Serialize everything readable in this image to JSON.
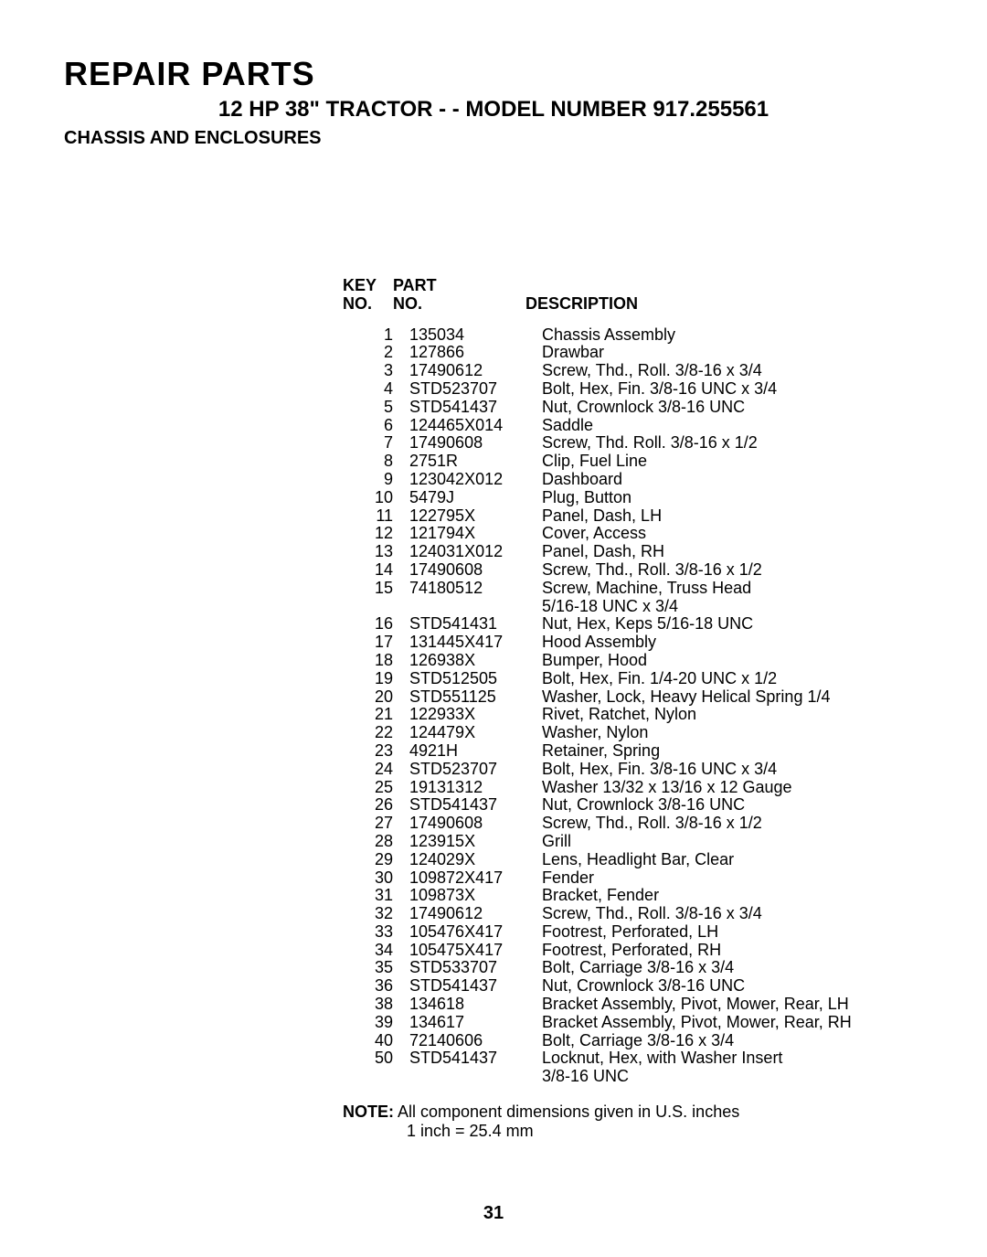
{
  "header": {
    "title": "REPAIR PARTS",
    "subtitle": "12 HP 38\" TRACTOR - - MODEL NUMBER 917.255561",
    "section": "CHASSIS AND ENCLOSURES"
  },
  "table": {
    "head": {
      "key_l1": "KEY",
      "key_l2": "NO.",
      "part_l1": "PART",
      "part_l2": "NO.",
      "desc": "DESCRIPTION"
    },
    "rows": [
      {
        "key": "1",
        "part": "135034",
        "desc": "Chassis Assembly"
      },
      {
        "key": "2",
        "part": "127866",
        "desc": "Drawbar"
      },
      {
        "key": "3",
        "part": "17490612",
        "desc": "Screw, Thd., Roll.  3/8-16 x 3/4"
      },
      {
        "key": "4",
        "part": "STD523707",
        "desc": "Bolt, Hex, Fin.  3/8-16 UNC x 3/4"
      },
      {
        "key": "5",
        "part": "STD541437",
        "desc": "Nut, Crownlock  3/8-16 UNC"
      },
      {
        "key": "6",
        "part": "124465X014",
        "desc": "Saddle"
      },
      {
        "key": "7",
        "part": "17490608",
        "desc": "Screw, Thd. Roll.  3/8-16 x 1/2"
      },
      {
        "key": "8",
        "part": "2751R",
        "desc": "Clip, Fuel Line"
      },
      {
        "key": "9",
        "part": "123042X012",
        "desc": "Dashboard"
      },
      {
        "key": "10",
        "part": "5479J",
        "desc": "Plug, Button"
      },
      {
        "key": "11",
        "part": "122795X",
        "desc": "Panel, Dash, LH"
      },
      {
        "key": "12",
        "part": "121794X",
        "desc": "Cover, Access"
      },
      {
        "key": "13",
        "part": "124031X012",
        "desc": "Panel, Dash, RH"
      },
      {
        "key": "14",
        "part": "17490608",
        "desc": "Screw, Thd., Roll.  3/8-16 x 1/2"
      },
      {
        "key": "15",
        "part": "74180512",
        "desc": "Screw, Machine, Truss Head"
      },
      {
        "key": "",
        "part": "",
        "desc": "5/16-18 UNC x 3/4"
      },
      {
        "key": "16",
        "part": "STD541431",
        "desc": "Nut, Hex, Keps  5/16-18 UNC"
      },
      {
        "key": "17",
        "part": "131445X417",
        "desc": "Hood Assembly"
      },
      {
        "key": "18",
        "part": "126938X",
        "desc": "Bumper, Hood"
      },
      {
        "key": "19",
        "part": "STD512505",
        "desc": "Bolt, Hex, Fin.  1/4-20 UNC x 1/2"
      },
      {
        "key": "20",
        "part": "STD551125",
        "desc": "Washer, Lock, Heavy Helical Spring  1/4"
      },
      {
        "key": "21",
        "part": "122933X",
        "desc": "Rivet, Ratchet, Nylon"
      },
      {
        "key": "22",
        "part": "124479X",
        "desc": "Washer, Nylon"
      },
      {
        "key": "23",
        "part": "4921H",
        "desc": "Retainer, Spring"
      },
      {
        "key": "24",
        "part": "STD523707",
        "desc": "Bolt, Hex, Fin.  3/8-16 UNC x 3/4"
      },
      {
        "key": "25",
        "part": "19131312",
        "desc": "Washer  13/32 x 13/16 x 12 Gauge"
      },
      {
        "key": "26",
        "part": "STD541437",
        "desc": "Nut, Crownlock  3/8-16 UNC"
      },
      {
        "key": "27",
        "part": "17490608",
        "desc": "Screw, Thd., Roll.  3/8-16 x 1/2"
      },
      {
        "key": "28",
        "part": "123915X",
        "desc": "Grill"
      },
      {
        "key": "29",
        "part": "124029X",
        "desc": "Lens, Headlight Bar, Clear"
      },
      {
        "key": "30",
        "part": "109872X417",
        "desc": "Fender"
      },
      {
        "key": "31",
        "part": "109873X",
        "desc": "Bracket, Fender"
      },
      {
        "key": "32",
        "part": "17490612",
        "desc": "Screw, Thd., Roll.  3/8-16 x 3/4"
      },
      {
        "key": "33",
        "part": "105476X417",
        "desc": "Footrest, Perforated, LH"
      },
      {
        "key": "34",
        "part": "105475X417",
        "desc": "Footrest, Perforated, RH"
      },
      {
        "key": "35",
        "part": "STD533707",
        "desc": "Bolt, Carriage  3/8-16 x 3/4"
      },
      {
        "key": "36",
        "part": "STD541437",
        "desc": "Nut, Crownlock  3/8-16 UNC"
      },
      {
        "key": "38",
        "part": "134618",
        "desc": "Bracket Assembly, Pivot, Mower, Rear, LH"
      },
      {
        "key": "39",
        "part": "134617",
        "desc": "Bracket Assembly, Pivot, Mower, Rear, RH"
      },
      {
        "key": "40",
        "part": "72140606",
        "desc": "Bolt, Carriage  3/8-16 x 3/4"
      },
      {
        "key": "50",
        "part": "STD541437",
        "desc": "Locknut, Hex, with Washer Insert"
      },
      {
        "key": "",
        "part": "",
        "desc": "3/8-16 UNC"
      }
    ]
  },
  "note": {
    "label": "NOTE:",
    "line1": "All component dimensions given in U.S. inches",
    "line2": "1 inch = 25.4 mm"
  },
  "page_number": "31"
}
